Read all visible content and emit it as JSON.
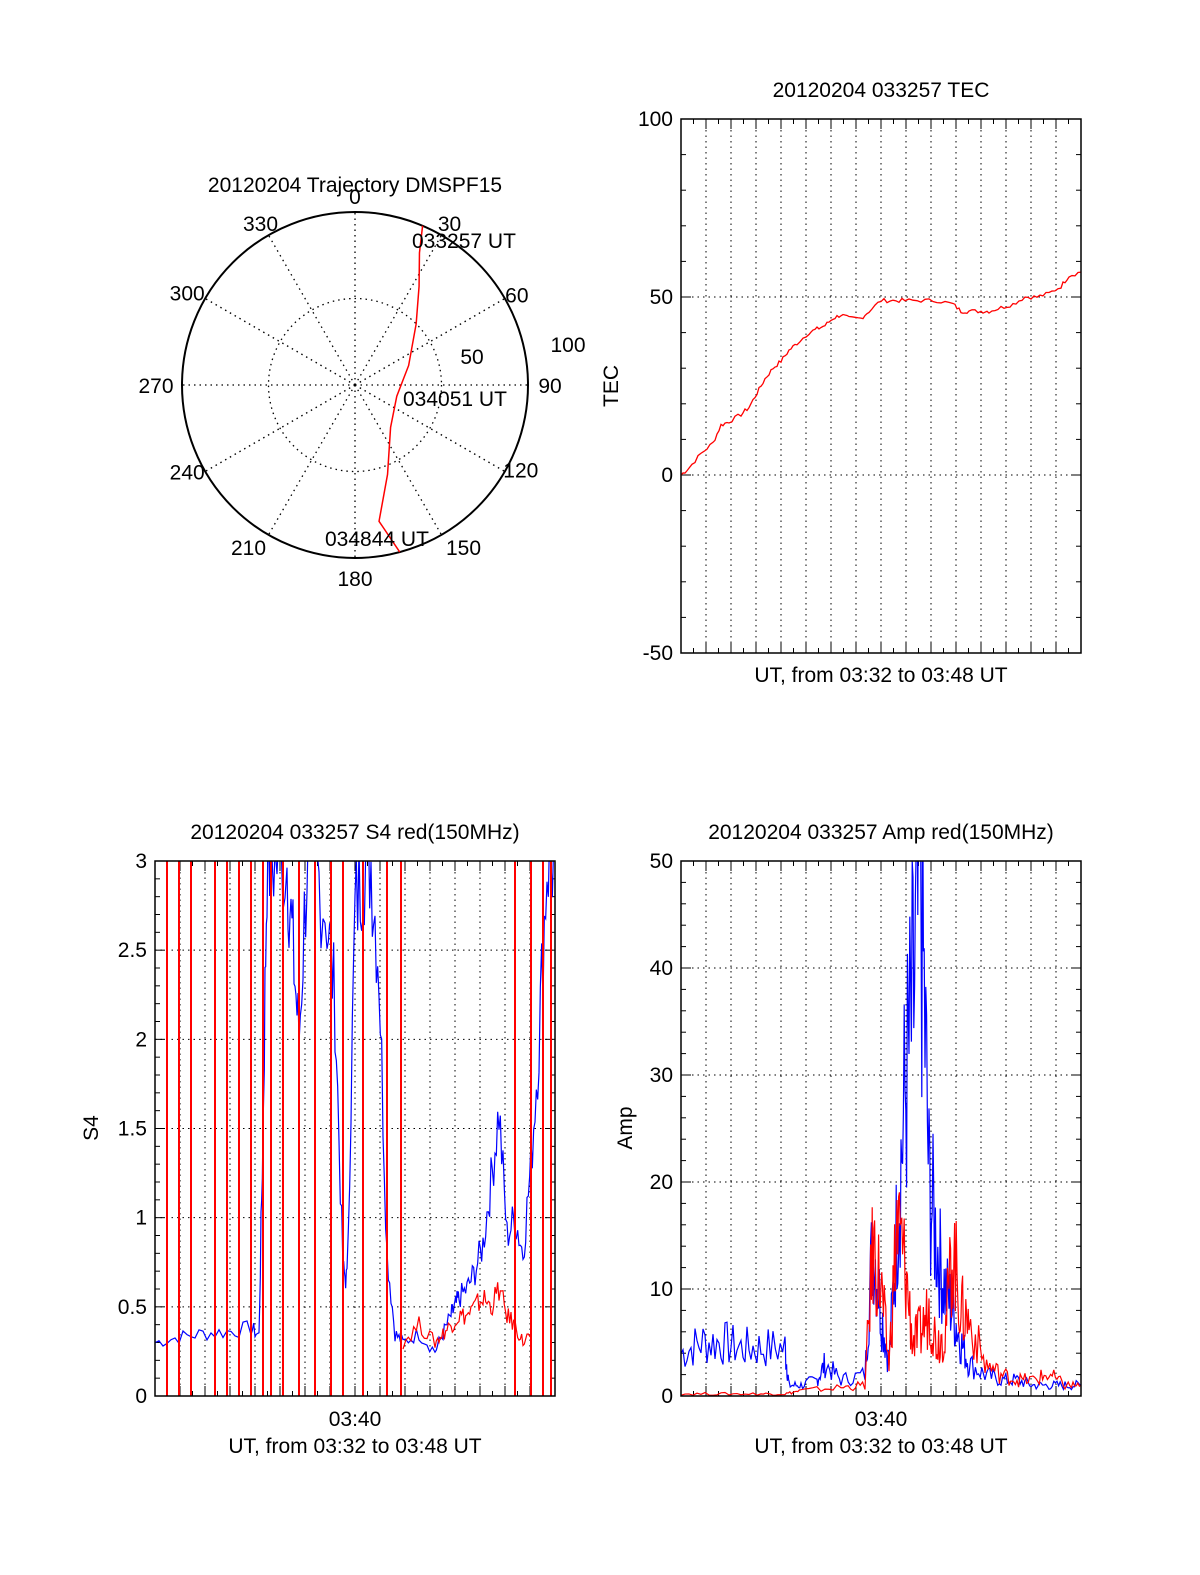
{
  "colors": {
    "series_red": "#ff0000",
    "series_blue": "#0000ff",
    "axes": "#000000",
    "grid": "#000000"
  },
  "chart_data": [
    {
      "type": "polar",
      "title": "20120204 Trajectory DMSPF15",
      "angle_labels": [
        "0",
        "30",
        "60",
        "90",
        "120",
        "150",
        "180",
        "210",
        "240",
        "270",
        "300",
        "330"
      ],
      "radial_labels": [
        "50",
        "100"
      ],
      "rlim": [
        0,
        100
      ],
      "grid": true,
      "series": [
        {
          "color": "#ff0000",
          "points": [
            {
              "azimuth": 23,
              "elevation_radius": 100
            },
            {
              "azimuth": 26,
              "elevation_radius": 85
            },
            {
              "azimuth": 33,
              "elevation_radius": 68
            },
            {
              "azimuth": 45,
              "elevation_radius": 50
            },
            {
              "azimuth": 70,
              "elevation_radius": 33
            },
            {
              "azimuth": 105,
              "elevation_radius": 25
            },
            {
              "azimuth": 140,
              "elevation_radius": 32
            },
            {
              "azimuth": 160,
              "elevation_radius": 55
            },
            {
              "azimuth": 170,
              "elevation_radius": 80
            },
            {
              "azimuth": 165,
              "elevation_radius": 100
            }
          ]
        }
      ],
      "annotations": [
        "033257 UT",
        "034051 UT",
        "034844 UT"
      ]
    },
    {
      "type": "line",
      "title": "20120204 033257 TEC",
      "xlabel": "UT, from 03:32 to 03:48 UT",
      "ylabel": "TEC",
      "xlim": [
        0,
        1000
      ],
      "ylim": [
        -50,
        100
      ],
      "yticks": [
        "-50",
        "0",
        "50",
        "100"
      ],
      "xticks": [],
      "grid": true,
      "series": [
        {
          "color": "#ff0000",
          "x": [
            0,
            20,
            50,
            80,
            100,
            120,
            150,
            170,
            190,
            210,
            230,
            250,
            270,
            290,
            320,
            340,
            360,
            380,
            400,
            420,
            450,
            470,
            500,
            530,
            560,
            600,
            640,
            680,
            700,
            720,
            750,
            770,
            800,
            830,
            860,
            890,
            920,
            950,
            970,
            1000
          ],
          "y": [
            0,
            2,
            6,
            9,
            14,
            15,
            17,
            19,
            23,
            27,
            30,
            32,
            35,
            37,
            40,
            41,
            42,
            44,
            45,
            44,
            44,
            46,
            49,
            49,
            49,
            49,
            49,
            48,
            46,
            46,
            46,
            46,
            47,
            48,
            50,
            50,
            51,
            53,
            56,
            57
          ]
        }
      ]
    },
    {
      "type": "line",
      "title": "20120204 033257 S4 red(150MHz)",
      "xlabel": "UT, from 03:32 to 03:48 UT",
      "ylabel": "S4",
      "xlim": [
        0,
        1000
      ],
      "ylim": [
        0,
        3
      ],
      "yticks": [
        "0",
        "0.5",
        "1",
        "1.5",
        "2",
        "2.5",
        "3"
      ],
      "xticks": [
        "03:40"
      ],
      "grid": true,
      "series": [
        {
          "color": "#0000ff",
          "x": [
            0,
            60,
            120,
            180,
            240,
            260,
            270,
            280,
            300,
            330,
            345,
            360,
            380,
            400,
            430,
            450,
            470,
            480,
            500,
            520,
            540,
            560,
            580,
            600,
            620,
            660,
            700,
            720,
            740,
            750,
            760,
            780,
            800,
            820,
            840,
            860,
            880,
            900,
            920,
            940,
            960,
            980,
            1000
          ],
          "x_note": "",
          "y": [
            0.3,
            0.33,
            0.35,
            0.36,
            0.38,
            0.34,
            1.5,
            3,
            3,
            3,
            2.5,
            2.0,
            3,
            3,
            2.7,
            2.2,
            0.7,
            0.65,
            2.7,
            3,
            3,
            2.4,
            0.8,
            0.35,
            0.3,
            0.35,
            0.25,
            0.35,
            0.45,
            0.5,
            0.55,
            0.6,
            0.7,
            0.85,
            1.2,
            1.6,
            0.9,
            1.0,
            0.8,
            1.3,
            2.0,
            3,
            3
          ]
        },
        {
          "color": "#ff0000",
          "x": [
            620,
            660,
            700,
            720,
            740,
            760,
            780,
            800,
            820,
            840,
            860,
            880,
            900,
            920,
            940
          ],
          "y": [
            0.3,
            0.4,
            0.3,
            0.35,
            0.4,
            0.45,
            0.45,
            0.5,
            0.55,
            0.5,
            0.6,
            0.45,
            0.4,
            0.3,
            0.35
          ],
          "spikes_x": [
            30,
            60,
            90,
            150,
            180,
            210,
            240,
            270,
            290,
            320,
            360,
            400,
            440,
            470,
            520,
            580,
            615,
            900,
            940,
            970,
            990
          ]
        }
      ]
    },
    {
      "type": "line",
      "title": "20120204 033257 Amp red(150MHz)",
      "xlabel": "UT, from 03:32 to 03:48 UT",
      "ylabel": "Amp",
      "xlim": [
        0,
        1000
      ],
      "ylim": [
        0,
        50
      ],
      "yticks": [
        "0",
        "10",
        "20",
        "30",
        "40",
        "50"
      ],
      "xticks": [
        "03:40"
      ],
      "grid": true,
      "series": [
        {
          "color": "#0000ff",
          "x": [
            0,
            50,
            100,
            150,
            200,
            260,
            270,
            300,
            340,
            360,
            400,
            460,
            480,
            500,
            520,
            540,
            560,
            580,
            600,
            620,
            640,
            660,
            680,
            700,
            720,
            760,
            800,
            840,
            880,
            920,
            960,
            1000
          ],
          "y": [
            4,
            5,
            5,
            4.5,
            4.5,
            4.5,
            1,
            1,
            1.5,
            3,
            1.5,
            2,
            15,
            8,
            3,
            16,
            28,
            36,
            48,
            20,
            14,
            10,
            8,
            5,
            3,
            2,
            1.5,
            1.5,
            1,
            1,
            1,
            1
          ]
        },
        {
          "color": "#ff0000",
          "x": [
            0,
            100,
            200,
            260,
            300,
            400,
            460,
            480,
            500,
            520,
            540,
            560,
            580,
            600,
            620,
            640,
            660,
            680,
            700,
            720,
            760,
            800,
            840,
            880,
            920,
            960,
            1000
          ],
          "y": [
            0.2,
            0.2,
            0.2,
            0.2,
            0.5,
            0.8,
            1,
            14,
            10,
            3,
            16,
            12,
            5,
            6,
            8,
            5,
            6,
            14,
            8,
            7,
            3,
            2,
            1.5,
            1.5,
            2,
            1,
            1
          ]
        }
      ]
    }
  ]
}
